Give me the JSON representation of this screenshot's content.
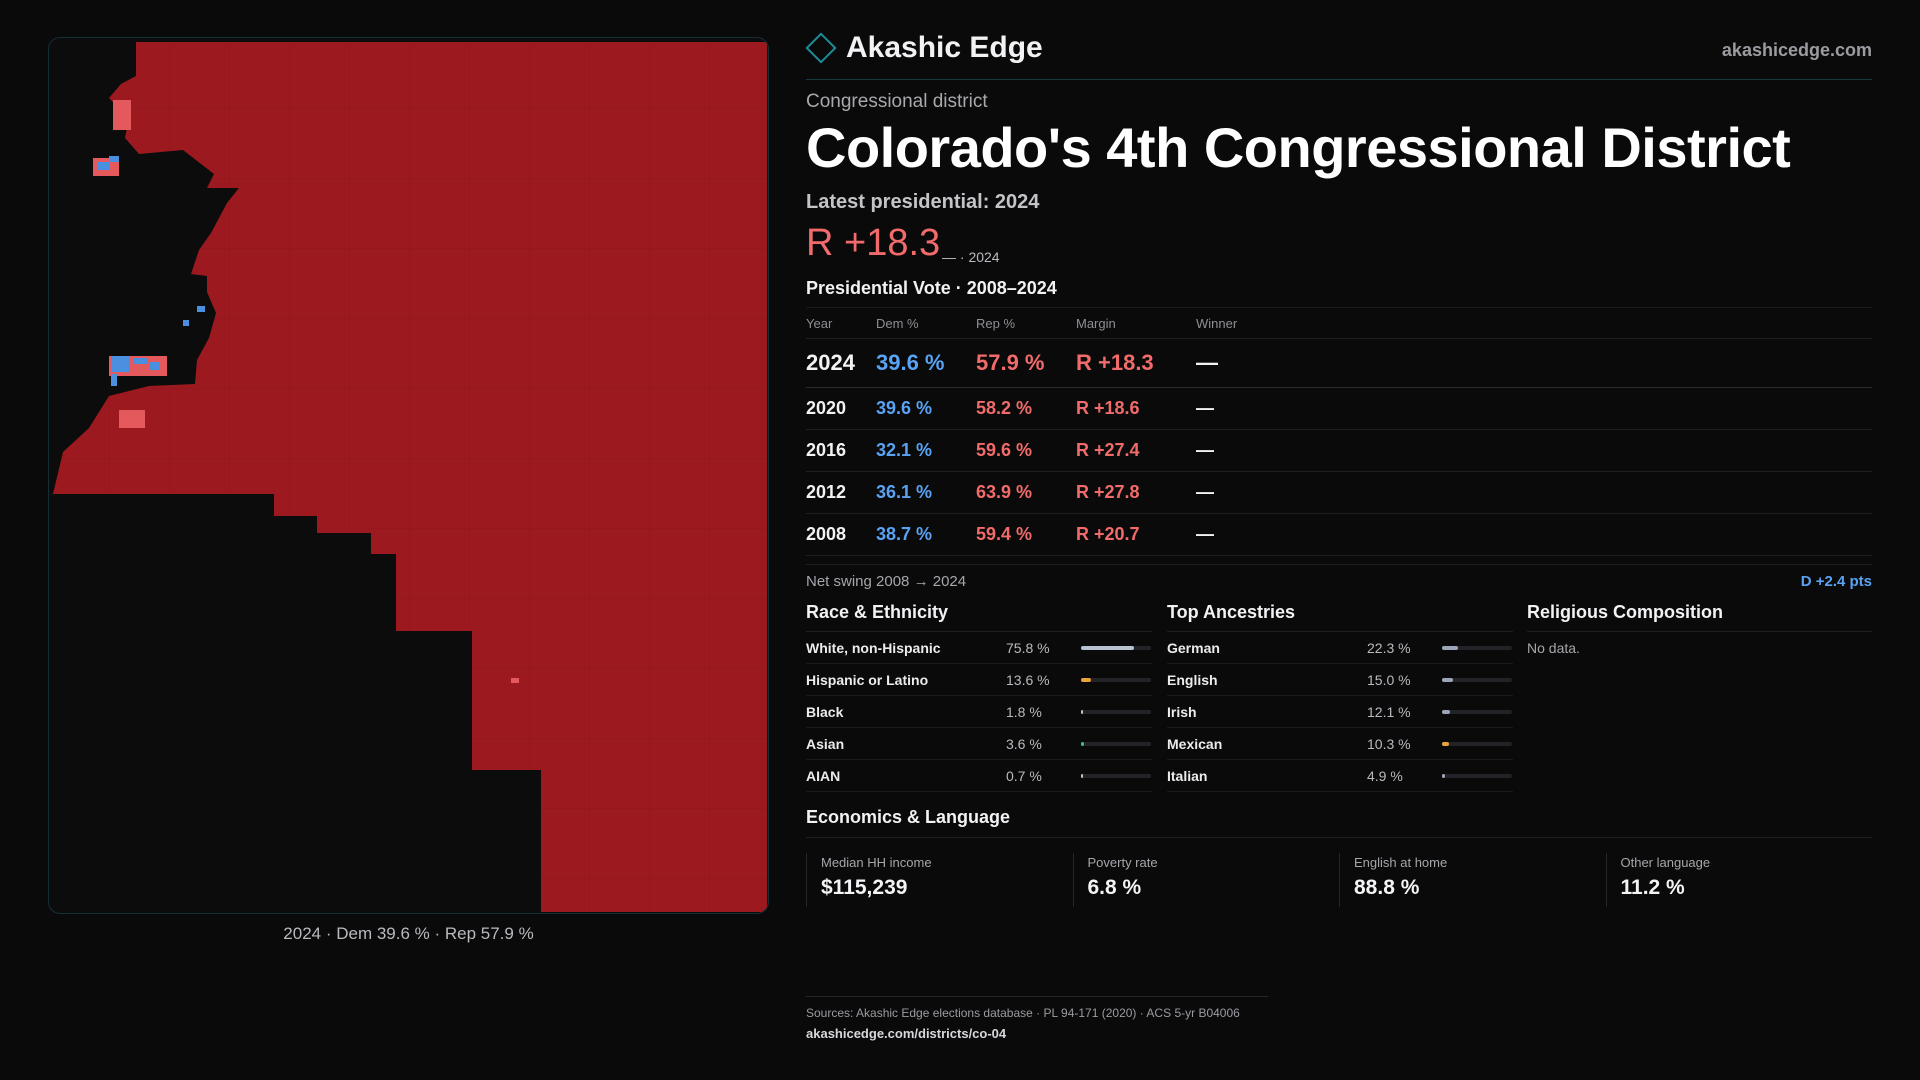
{
  "map": {
    "caption": "2024 · Dem 39.6 % · Rep 57.9 %",
    "colors": {
      "rep_strong": "#9c1a1f",
      "rep_light": "#e45a5c",
      "dem": "#4a8fe0",
      "background": "#0c0c0d"
    }
  },
  "header": {
    "brand": "Akashic Edge",
    "site": "akashicedge.com",
    "kicker": "Congressional district",
    "title": "Colorado's  4th Congressional District"
  },
  "latest": {
    "label": "Latest presidential: 2024",
    "margin": "R +18.3",
    "sub": "— · 2024"
  },
  "presidential": {
    "title": "Presidential Vote · 2008–2024",
    "columns": [
      "Year",
      "Dem %",
      "Rep %",
      "Margin",
      "Winner"
    ],
    "rows": [
      {
        "year": "2024",
        "dem": "39.6 %",
        "rep": "57.9 %",
        "margin": "R +18.3",
        "winner": "—"
      },
      {
        "year": "2020",
        "dem": "39.6 %",
        "rep": "58.2 %",
        "margin": "R +18.6",
        "winner": "—"
      },
      {
        "year": "2016",
        "dem": "32.1 %",
        "rep": "59.6 %",
        "margin": "R +27.4",
        "winner": "—"
      },
      {
        "year": "2012",
        "dem": "36.1 %",
        "rep": "63.9 %",
        "margin": "R +27.8",
        "winner": "—"
      },
      {
        "year": "2008",
        "dem": "38.7 %",
        "rep": "59.4 %",
        "margin": "R +20.7",
        "winner": "—"
      }
    ]
  },
  "swing": {
    "label": "Net swing 2008 → 2024",
    "value": "D +2.4 pts"
  },
  "race": {
    "title": "Race & Ethnicity",
    "items": [
      {
        "label": "White, non-Hispanic",
        "value": "75.8 %",
        "pct": 75.8,
        "color": "#b8c2d0"
      },
      {
        "label": "Hispanic or Latino",
        "value": "13.6 %",
        "pct": 13.6,
        "color": "#e8a33a"
      },
      {
        "label": "Black",
        "value": "1.8 %",
        "pct": 1.8,
        "color": "#b8c2d0"
      },
      {
        "label": "Asian",
        "value": "3.6 %",
        "pct": 3.6,
        "color": "#3fb8a0"
      },
      {
        "label": "AIAN",
        "value": "0.7 %",
        "pct": 0.7,
        "color": "#b8c2d0"
      }
    ]
  },
  "ancestry": {
    "title": "Top Ancestries",
    "items": [
      {
        "label": "German",
        "value": "22.3 %",
        "pct": 22.3,
        "color": "#9aa6b8"
      },
      {
        "label": "English",
        "value": "15.0 %",
        "pct": 15.0,
        "color": "#9aa6b8"
      },
      {
        "label": "Irish",
        "value": "12.1 %",
        "pct": 12.1,
        "color": "#9aa6b8"
      },
      {
        "label": "Mexican",
        "value": "10.3 %",
        "pct": 10.3,
        "color": "#e8a33a"
      },
      {
        "label": "Italian",
        "value": "4.9 %",
        "pct": 4.9,
        "color": "#9aa6b8"
      }
    ]
  },
  "religion": {
    "title": "Religious Composition",
    "empty": "No data."
  },
  "economics": {
    "title": "Economics & Language",
    "items": [
      {
        "label": "Median HH income",
        "value": "$115,239"
      },
      {
        "label": "Poverty rate",
        "value": "6.8 %"
      },
      {
        "label": "English at home",
        "value": "88.8 %"
      },
      {
        "label": "Other language",
        "value": "11.2 %"
      }
    ]
  },
  "sources": {
    "line": "Sources: Akashic Edge elections database · PL 94-171 (2020) · ACS 5-yr B04006",
    "url": "akashicedge.com/districts/co-04"
  }
}
